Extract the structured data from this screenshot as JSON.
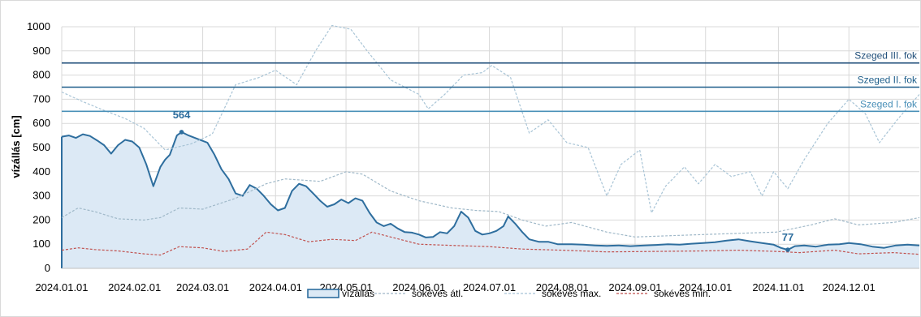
{
  "chart_data": {
    "type": "area",
    "ylabel": "vízállás [cm]",
    "ylim": [
      0,
      1000
    ],
    "yticks": [
      0,
      100,
      200,
      300,
      400,
      500,
      600,
      700,
      800,
      900,
      1000
    ],
    "xlim": [
      "2024-01-01",
      "2024-12-31"
    ],
    "xtick_labels": [
      "2024.01.01",
      "2024.02.01",
      "2024.03.01",
      "2024.04.01",
      "2024.05.01",
      "2024.06.01",
      "2024.07.01",
      "2024.08.01",
      "2024.09.01",
      "2024.10.01",
      "2024.11.01",
      "2024.12.01"
    ],
    "xtick_dates": [
      "2024-01-01",
      "2024-02-01",
      "2024-03-01",
      "2024-04-01",
      "2024-05-01",
      "2024-06-01",
      "2024-07-01",
      "2024-08-01",
      "2024-09-01",
      "2024-10-01",
      "2024-11-01",
      "2024-12-01"
    ],
    "grid": true,
    "legend_position": "bottom",
    "thresholds": [
      {
        "label": "Szeged III. fok",
        "value": 850,
        "color": "#1f4e79"
      },
      {
        "label": "Szeged II. fok",
        "value": 750,
        "color": "#1f5f8b"
      },
      {
        "label": "Szeged I. fok",
        "value": 650,
        "color": "#4a90b8"
      }
    ],
    "annotations": [
      {
        "label": "564",
        "x": "2024-02-21",
        "y": 564
      },
      {
        "label": "77",
        "x": "2024-11-05",
        "y": 77
      }
    ],
    "series": [
      {
        "name": "vízállás",
        "style": "area",
        "color": "#2e6e9e",
        "fill": "#dce9f5",
        "points": [
          [
            "2024-01-01",
            545
          ],
          [
            "2024-01-04",
            550
          ],
          [
            "2024-01-07",
            540
          ],
          [
            "2024-01-10",
            555
          ],
          [
            "2024-01-13",
            548
          ],
          [
            "2024-01-16",
            530
          ],
          [
            "2024-01-19",
            510
          ],
          [
            "2024-01-22",
            475
          ],
          [
            "2024-01-25",
            510
          ],
          [
            "2024-01-28",
            532
          ],
          [
            "2024-01-31",
            525
          ],
          [
            "2024-02-03",
            500
          ],
          [
            "2024-02-06",
            430
          ],
          [
            "2024-02-09",
            340
          ],
          [
            "2024-02-12",
            420
          ],
          [
            "2024-02-14",
            450
          ],
          [
            "2024-02-16",
            470
          ],
          [
            "2024-02-19",
            550
          ],
          [
            "2024-02-21",
            564
          ],
          [
            "2024-02-24",
            550
          ],
          [
            "2024-02-28",
            535
          ],
          [
            "2024-03-03",
            520
          ],
          [
            "2024-03-06",
            470
          ],
          [
            "2024-03-09",
            410
          ],
          [
            "2024-03-12",
            370
          ],
          [
            "2024-03-15",
            310
          ],
          [
            "2024-03-18",
            300
          ],
          [
            "2024-03-21",
            345
          ],
          [
            "2024-03-24",
            330
          ],
          [
            "2024-03-27",
            300
          ],
          [
            "2024-03-30",
            265
          ],
          [
            "2024-04-02",
            240
          ],
          [
            "2024-04-05",
            250
          ],
          [
            "2024-04-08",
            320
          ],
          [
            "2024-04-11",
            350
          ],
          [
            "2024-04-14",
            340
          ],
          [
            "2024-04-17",
            310
          ],
          [
            "2024-04-20",
            280
          ],
          [
            "2024-04-23",
            255
          ],
          [
            "2024-04-26",
            265
          ],
          [
            "2024-04-29",
            285
          ],
          [
            "2024-05-02",
            270
          ],
          [
            "2024-05-05",
            290
          ],
          [
            "2024-05-08",
            280
          ],
          [
            "2024-05-11",
            230
          ],
          [
            "2024-05-14",
            190
          ],
          [
            "2024-05-17",
            175
          ],
          [
            "2024-05-20",
            185
          ],
          [
            "2024-05-23",
            165
          ],
          [
            "2024-05-26",
            150
          ],
          [
            "2024-05-29",
            148
          ],
          [
            "2024-06-01",
            140
          ],
          [
            "2024-06-04",
            128
          ],
          [
            "2024-06-07",
            130
          ],
          [
            "2024-06-10",
            150
          ],
          [
            "2024-06-13",
            145
          ],
          [
            "2024-06-16",
            175
          ],
          [
            "2024-06-19",
            235
          ],
          [
            "2024-06-22",
            210
          ],
          [
            "2024-06-25",
            155
          ],
          [
            "2024-06-28",
            140
          ],
          [
            "2024-07-01",
            145
          ],
          [
            "2024-07-04",
            155
          ],
          [
            "2024-07-07",
            175
          ],
          [
            "2024-07-09",
            215
          ],
          [
            "2024-07-12",
            185
          ],
          [
            "2024-07-15",
            150
          ],
          [
            "2024-07-18",
            120
          ],
          [
            "2024-07-22",
            110
          ],
          [
            "2024-07-26",
            110
          ],
          [
            "2024-07-30",
            100
          ],
          [
            "2024-08-05",
            100
          ],
          [
            "2024-08-10",
            98
          ],
          [
            "2024-08-15",
            95
          ],
          [
            "2024-08-20",
            93
          ],
          [
            "2024-08-25",
            95
          ],
          [
            "2024-08-30",
            92
          ],
          [
            "2024-09-05",
            95
          ],
          [
            "2024-09-10",
            97
          ],
          [
            "2024-09-15",
            100
          ],
          [
            "2024-09-20",
            98
          ],
          [
            "2024-09-25",
            102
          ],
          [
            "2024-09-30",
            105
          ],
          [
            "2024-10-05",
            108
          ],
          [
            "2024-10-10",
            115
          ],
          [
            "2024-10-15",
            120
          ],
          [
            "2024-10-20",
            112
          ],
          [
            "2024-10-25",
            105
          ],
          [
            "2024-10-30",
            98
          ],
          [
            "2024-11-02",
            85
          ],
          [
            "2024-11-05",
            77
          ],
          [
            "2024-11-08",
            92
          ],
          [
            "2024-11-12",
            95
          ],
          [
            "2024-11-17",
            90
          ],
          [
            "2024-11-22",
            98
          ],
          [
            "2024-11-27",
            100
          ],
          [
            "2024-12-01",
            105
          ],
          [
            "2024-12-06",
            100
          ],
          [
            "2024-12-11",
            90
          ],
          [
            "2024-12-16",
            85
          ],
          [
            "2024-12-21",
            95
          ],
          [
            "2024-12-26",
            98
          ],
          [
            "2024-12-31",
            95
          ]
        ]
      },
      {
        "name": "sokéves átl.",
        "style": "dashed",
        "color": "#9fb8c8",
        "points": [
          [
            "2024-01-01",
            210
          ],
          [
            "2024-01-08",
            250
          ],
          [
            "2024-01-15",
            235
          ],
          [
            "2024-01-25",
            205
          ],
          [
            "2024-02-05",
            200
          ],
          [
            "2024-02-12",
            210
          ],
          [
            "2024-02-20",
            250
          ],
          [
            "2024-03-01",
            245
          ],
          [
            "2024-03-15",
            290
          ],
          [
            "2024-03-28",
            350
          ],
          [
            "2024-04-05",
            370
          ],
          [
            "2024-04-20",
            360
          ],
          [
            "2024-05-01",
            400
          ],
          [
            "2024-05-08",
            390
          ],
          [
            "2024-05-20",
            320
          ],
          [
            "2024-06-01",
            280
          ],
          [
            "2024-06-15",
            250
          ],
          [
            "2024-06-25",
            240
          ],
          [
            "2024-07-05",
            235
          ],
          [
            "2024-07-15",
            200
          ],
          [
            "2024-07-25",
            175
          ],
          [
            "2024-08-05",
            190
          ],
          [
            "2024-08-20",
            150
          ],
          [
            "2024-09-01",
            130
          ],
          [
            "2024-09-15",
            135
          ],
          [
            "2024-09-30",
            140
          ],
          [
            "2024-10-15",
            145
          ],
          [
            "2024-10-31",
            150
          ],
          [
            "2024-11-15",
            180
          ],
          [
            "2024-11-25",
            205
          ],
          [
            "2024-12-05",
            180
          ],
          [
            "2024-12-20",
            190
          ],
          [
            "2024-12-31",
            210
          ]
        ]
      },
      {
        "name": "sokéves max.",
        "style": "dashed",
        "color": "#a8c4d6",
        "points": [
          [
            "2024-01-01",
            730
          ],
          [
            "2024-01-10",
            690
          ],
          [
            "2024-01-20",
            650
          ],
          [
            "2024-01-28",
            620
          ],
          [
            "2024-02-05",
            580
          ],
          [
            "2024-02-14",
            490
          ],
          [
            "2024-02-25",
            515
          ],
          [
            "2024-03-05",
            555
          ],
          [
            "2024-03-15",
            760
          ],
          [
            "2024-03-25",
            790
          ],
          [
            "2024-04-01",
            820
          ],
          [
            "2024-04-10",
            760
          ],
          [
            "2024-04-18",
            900
          ],
          [
            "2024-04-25",
            1005
          ],
          [
            "2024-05-03",
            990
          ],
          [
            "2024-05-10",
            900
          ],
          [
            "2024-05-20",
            780
          ],
          [
            "2024-06-01",
            720
          ],
          [
            "2024-06-05",
            660
          ],
          [
            "2024-06-12",
            720
          ],
          [
            "2024-06-20",
            800
          ],
          [
            "2024-06-28",
            810
          ],
          [
            "2024-07-02",
            840
          ],
          [
            "2024-07-10",
            790
          ],
          [
            "2024-07-18",
            560
          ],
          [
            "2024-07-26",
            615
          ],
          [
            "2024-08-03",
            520
          ],
          [
            "2024-08-12",
            500
          ],
          [
            "2024-08-20",
            300
          ],
          [
            "2024-08-26",
            430
          ],
          [
            "2024-09-03",
            490
          ],
          [
            "2024-09-08",
            230
          ],
          [
            "2024-09-14",
            340
          ],
          [
            "2024-09-22",
            420
          ],
          [
            "2024-09-28",
            350
          ],
          [
            "2024-10-05",
            430
          ],
          [
            "2024-10-12",
            380
          ],
          [
            "2024-10-20",
            400
          ],
          [
            "2024-10-25",
            300
          ],
          [
            "2024-10-30",
            400
          ],
          [
            "2024-11-05",
            330
          ],
          [
            "2024-11-12",
            450
          ],
          [
            "2024-11-22",
            600
          ],
          [
            "2024-12-01",
            700
          ],
          [
            "2024-12-08",
            640
          ],
          [
            "2024-12-14",
            520
          ],
          [
            "2024-12-22",
            620
          ],
          [
            "2024-12-31",
            720
          ]
        ]
      },
      {
        "name": "sokéves min.",
        "style": "dashed",
        "color": "#c0504d",
        "points": [
          [
            "2024-01-01",
            75
          ],
          [
            "2024-01-08",
            85
          ],
          [
            "2024-01-15",
            78
          ],
          [
            "2024-01-25",
            72
          ],
          [
            "2024-02-05",
            60
          ],
          [
            "2024-02-12",
            55
          ],
          [
            "2024-02-20",
            90
          ],
          [
            "2024-03-01",
            85
          ],
          [
            "2024-03-10",
            70
          ],
          [
            "2024-03-20",
            80
          ],
          [
            "2024-03-28",
            150
          ],
          [
            "2024-04-05",
            140
          ],
          [
            "2024-04-15",
            110
          ],
          [
            "2024-04-25",
            120
          ],
          [
            "2024-05-05",
            115
          ],
          [
            "2024-05-12",
            150
          ],
          [
            "2024-05-20",
            130
          ],
          [
            "2024-06-01",
            100
          ],
          [
            "2024-06-15",
            95
          ],
          [
            "2024-07-01",
            90
          ],
          [
            "2024-07-15",
            80
          ],
          [
            "2024-08-01",
            75
          ],
          [
            "2024-08-20",
            68
          ],
          [
            "2024-09-10",
            70
          ],
          [
            "2024-09-30",
            72
          ],
          [
            "2024-10-15",
            75
          ],
          [
            "2024-10-31",
            70
          ],
          [
            "2024-11-10",
            65
          ],
          [
            "2024-11-25",
            75
          ],
          [
            "2024-12-05",
            60
          ],
          [
            "2024-12-20",
            65
          ],
          [
            "2024-12-31",
            58
          ]
        ]
      }
    ]
  }
}
